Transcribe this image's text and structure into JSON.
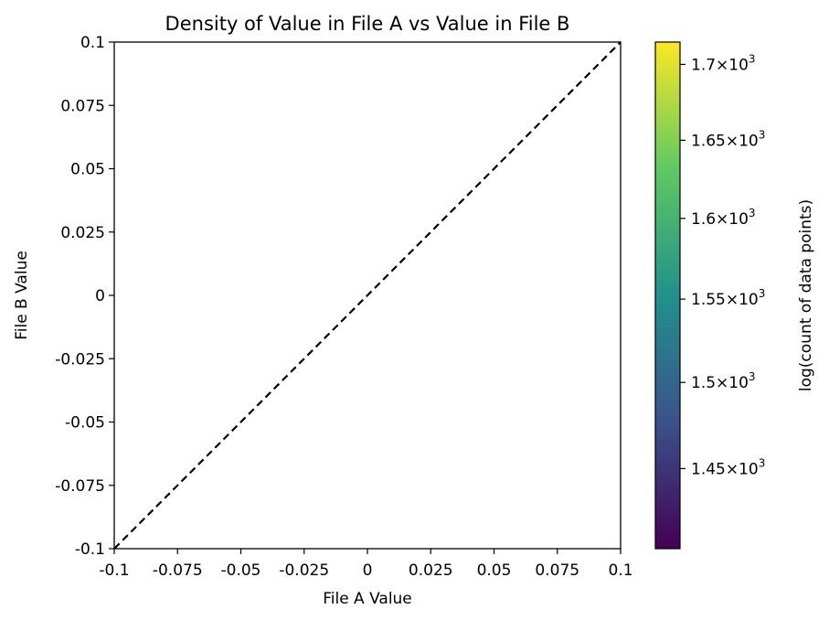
{
  "chart_data": {
    "type": "heatmap",
    "title": "Density of Value in File A vs Value in File B",
    "xlabel": "File A Value",
    "ylabel": "File B Value",
    "xlim": [
      -0.1,
      0.1
    ],
    "ylim": [
      -0.1,
      0.1
    ],
    "x_ticks": [
      -0.1,
      -0.075,
      -0.05,
      -0.025,
      0,
      0.025,
      0.05,
      0.075,
      0.1
    ],
    "x_tick_labels": [
      "-0.1",
      "-0.075",
      "-0.05",
      "-0.025",
      "0",
      "0.025",
      "0.05",
      "0.075",
      "0.1"
    ],
    "y_ticks": [
      -0.1,
      -0.075,
      -0.05,
      -0.025,
      0,
      0.025,
      0.05,
      0.075,
      0.1
    ],
    "y_tick_labels": [
      "-0.1",
      "-0.075",
      "-0.05",
      "-0.025",
      "0",
      "0.025",
      "0.05",
      "0.075",
      "0.1"
    ],
    "reference_line": {
      "style": "dashed",
      "color": "#000000",
      "from": [
        -0.1,
        -0.1
      ],
      "to": [
        0.1,
        0.1
      ]
    },
    "grid": false,
    "colorbar": {
      "label": "log(count of data points)",
      "colormap": "viridis",
      "scale": "log",
      "range": [
        1405,
        1715
      ],
      "ticks": [
        1450,
        1500,
        1550,
        1600,
        1650,
        1700
      ],
      "tick_labels": [
        {
          "mantissa": "1.45",
          "exp": "3"
        },
        {
          "mantissa": "1.5",
          "exp": "3"
        },
        {
          "mantissa": "1.55",
          "exp": "3"
        },
        {
          "mantissa": "1.6",
          "exp": "3"
        },
        {
          "mantissa": "1.65",
          "exp": "3"
        },
        {
          "mantissa": "1.7",
          "exp": "3"
        }
      ]
    },
    "colors": [
      "#440154",
      "#3b528b",
      "#21918c",
      "#5ec962",
      "#fde725"
    ]
  }
}
